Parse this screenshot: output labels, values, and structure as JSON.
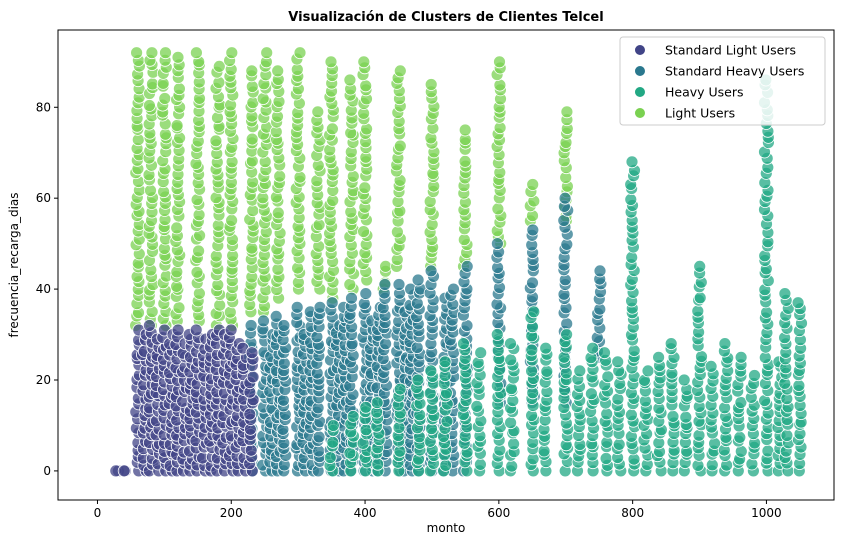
{
  "chart_data": {
    "type": "scatter",
    "title": "Visualización de Clusters de Clientes Telcel",
    "xlabel": "monto",
    "ylabel": "frecuencia_recarga_dias",
    "xlim": [
      -59,
      1101
    ],
    "ylim": [
      -6.4,
      97
    ],
    "xticks": [
      0,
      200,
      400,
      600,
      800,
      1000
    ],
    "yticks": [
      0,
      20,
      40,
      60,
      80
    ],
    "grid": false,
    "legend_position": "top-right",
    "point_encoding": "columns of [monto, min frecuencia, max frecuencia]",
    "series": [
      {
        "name": "Light Users",
        "color": "#7ad151",
        "columns": [
          [
            60,
            32,
            92
          ],
          [
            80,
            32,
            92
          ],
          [
            100,
            32,
            92
          ],
          [
            120,
            33,
            91
          ],
          [
            150,
            33,
            92
          ],
          [
            180,
            32,
            89
          ],
          [
            200,
            32,
            92
          ],
          [
            230,
            35,
            88
          ],
          [
            250,
            35,
            92
          ],
          [
            270,
            38,
            88
          ],
          [
            300,
            40,
            92
          ],
          [
            330,
            40,
            79
          ],
          [
            350,
            38,
            90
          ],
          [
            380,
            40,
            86
          ],
          [
            400,
            42,
            90
          ],
          [
            430,
            40,
            45
          ],
          [
            450,
            45,
            88
          ],
          [
            500,
            45,
            85
          ],
          [
            550,
            45,
            75
          ],
          [
            600,
            50,
            90
          ],
          [
            650,
            55,
            63
          ],
          [
            700,
            55,
            79
          ]
        ]
      },
      {
        "name": "Standard Heavy Users",
        "color": "#2a788e",
        "columns": [
          [
            230,
            0,
            32
          ],
          [
            250,
            0,
            33
          ],
          [
            260,
            0,
            30
          ],
          [
            270,
            0,
            34
          ],
          [
            280,
            0,
            32
          ],
          [
            300,
            0,
            36
          ],
          [
            310,
            0,
            30
          ],
          [
            320,
            0,
            35
          ],
          [
            330,
            0,
            36
          ],
          [
            350,
            0,
            37
          ],
          [
            360,
            0,
            32
          ],
          [
            370,
            0,
            36
          ],
          [
            380,
            0,
            38
          ],
          [
            400,
            0,
            39
          ],
          [
            410,
            0,
            33
          ],
          [
            420,
            0,
            36
          ],
          [
            430,
            0,
            41
          ],
          [
            450,
            0,
            41
          ],
          [
            460,
            0,
            35
          ],
          [
            470,
            0,
            40
          ],
          [
            480,
            0,
            42
          ],
          [
            500,
            0,
            44
          ],
          [
            520,
            0,
            38
          ],
          [
            530,
            0,
            40
          ],
          [
            550,
            0,
            45
          ],
          [
            600,
            15,
            50
          ],
          [
            650,
            15,
            53
          ],
          [
            700,
            15,
            60
          ],
          [
            750,
            25,
            44
          ]
        ]
      },
      {
        "name": "Standard Light Users",
        "color": "#414487",
        "columns": [
          [
            30,
            0,
            0
          ],
          [
            40,
            0,
            0
          ],
          [
            60,
            0,
            31
          ],
          [
            70,
            0,
            30
          ],
          [
            80,
            0,
            32
          ],
          [
            90,
            0,
            29
          ],
          [
            100,
            0,
            31
          ],
          [
            110,
            0,
            30
          ],
          [
            120,
            0,
            31
          ],
          [
            130,
            0,
            28
          ],
          [
            140,
            0,
            30
          ],
          [
            150,
            0,
            31
          ],
          [
            160,
            0,
            29
          ],
          [
            170,
            0,
            30
          ],
          [
            180,
            0,
            31
          ],
          [
            190,
            0,
            30
          ],
          [
            200,
            0,
            31
          ],
          [
            210,
            0,
            28
          ],
          [
            220,
            0,
            27
          ],
          [
            230,
            0,
            26
          ]
        ]
      },
      {
        "name": "Heavy Users",
        "color": "#22a884",
        "columns": [
          [
            350,
            0,
            10
          ],
          [
            380,
            0,
            12
          ],
          [
            400,
            0,
            14
          ],
          [
            420,
            0,
            15
          ],
          [
            450,
            0,
            18
          ],
          [
            480,
            0,
            20
          ],
          [
            500,
            0,
            22
          ],
          [
            520,
            0,
            24
          ],
          [
            550,
            0,
            28
          ],
          [
            570,
            0,
            26
          ],
          [
            600,
            0,
            30
          ],
          [
            620,
            0,
            28
          ],
          [
            650,
            0,
            35
          ],
          [
            670,
            0,
            27
          ],
          [
            700,
            0,
            30
          ],
          [
            720,
            0,
            22
          ],
          [
            740,
            0,
            27
          ],
          [
            760,
            0,
            26
          ],
          [
            780,
            0,
            24
          ],
          [
            800,
            0,
            68
          ],
          [
            820,
            0,
            22
          ],
          [
            840,
            0,
            25
          ],
          [
            860,
            0,
            28
          ],
          [
            880,
            0,
            20
          ],
          [
            900,
            0,
            45
          ],
          [
            920,
            0,
            23
          ],
          [
            940,
            0,
            28
          ],
          [
            960,
            0,
            25
          ],
          [
            980,
            0,
            21
          ],
          [
            1000,
            0,
            86
          ],
          [
            1020,
            0,
            24
          ],
          [
            1030,
            0,
            39
          ],
          [
            1050,
            0,
            37
          ]
        ]
      }
    ]
  }
}
